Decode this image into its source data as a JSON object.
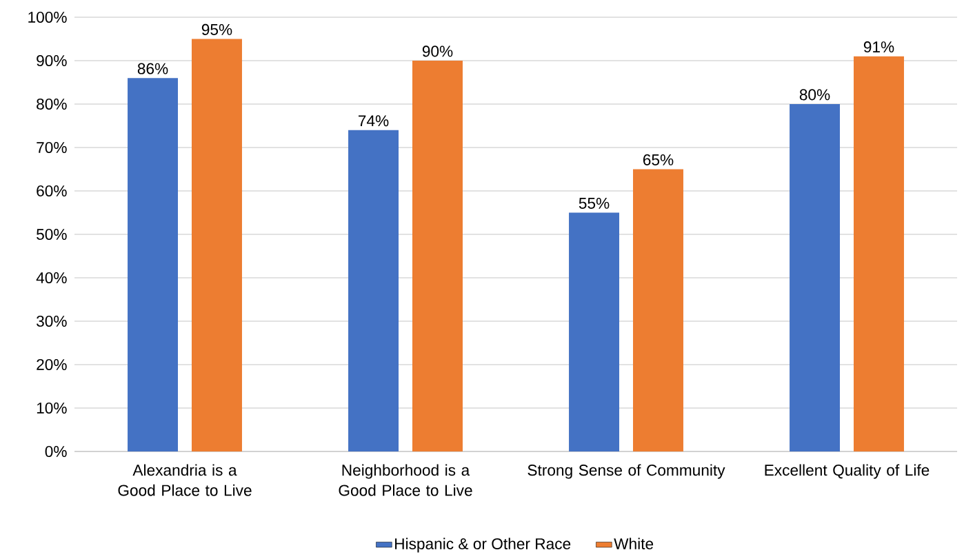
{
  "chart_data": {
    "type": "bar",
    "categories": [
      "Alexandria is a Good Place to Live",
      "Neighborhood is a Good Place to Live",
      "Strong Sense of Community",
      "Excellent Quality of Life"
    ],
    "series": [
      {
        "name": "Hispanic & or Other Race",
        "color": "#4472c4",
        "values": [
          86,
          74,
          55,
          80
        ],
        "value_labels": [
          "86%",
          "74%",
          "55%",
          "80%"
        ]
      },
      {
        "name": "White",
        "color": "#ed7d31",
        "values": [
          95,
          90,
          65,
          91
        ],
        "value_labels": [
          "95%",
          "90%",
          "65%",
          "91%"
        ]
      }
    ],
    "ylim": [
      0,
      100
    ],
    "yticks": [
      {
        "value": 0,
        "label": "0%"
      },
      {
        "value": 10,
        "label": "10%"
      },
      {
        "value": 20,
        "label": "20%"
      },
      {
        "value": 30,
        "label": "30%"
      },
      {
        "value": 40,
        "label": "40%"
      },
      {
        "value": 50,
        "label": "50%"
      },
      {
        "value": 60,
        "label": "60%"
      },
      {
        "value": 70,
        "label": "70%"
      },
      {
        "value": 80,
        "label": "80%"
      },
      {
        "value": 90,
        "label": "90%"
      },
      {
        "value": 100,
        "label": "100%"
      }
    ],
    "grid": "y",
    "legend": "bottom"
  }
}
